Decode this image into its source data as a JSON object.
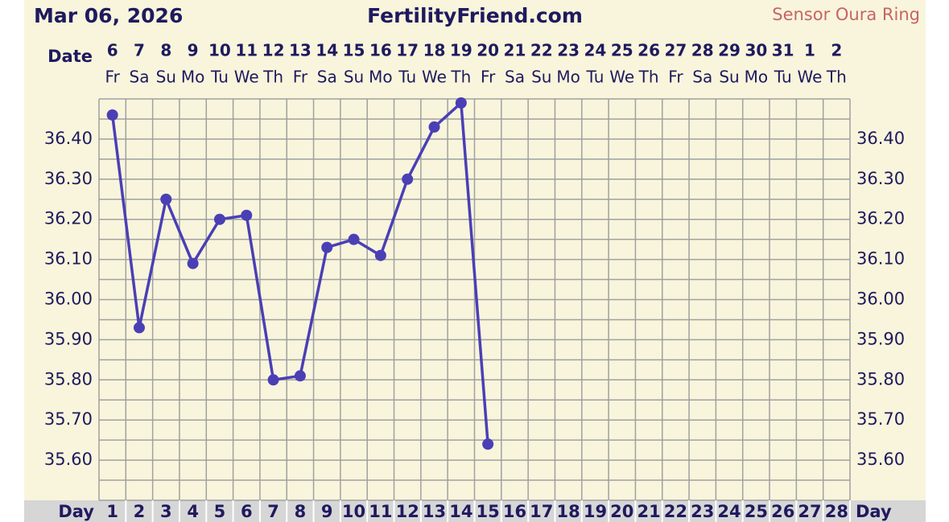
{
  "chart_data": {
    "type": "line",
    "title": "Mar 06, 2026",
    "subtitle": "FertilityFriend.com",
    "annotation": "Sensor Oura Ring",
    "date_label": "Date",
    "day_label": "Day",
    "dates": [
      "6",
      "7",
      "8",
      "9",
      "10",
      "11",
      "12",
      "13",
      "14",
      "15",
      "16",
      "17",
      "18",
      "19",
      "20",
      "21",
      "22",
      "23",
      "24",
      "25",
      "26",
      "27",
      "28",
      "29",
      "30",
      "31",
      "1",
      "2"
    ],
    "weekdays": [
      "Fr",
      "Sa",
      "Su",
      "Mo",
      "Tu",
      "We",
      "Th",
      "Fr",
      "Sa",
      "Su",
      "Mo",
      "Tu",
      "We",
      "Th",
      "Fr",
      "Sa",
      "Su",
      "Mo",
      "Tu",
      "We",
      "Th",
      "Fr",
      "Sa",
      "Su",
      "Mo",
      "Tu",
      "We",
      "Th"
    ],
    "x": [
      1,
      2,
      3,
      4,
      5,
      6,
      7,
      8,
      9,
      10,
      11,
      12,
      13,
      14,
      15,
      16,
      17,
      18,
      19,
      20,
      21,
      22,
      23,
      24,
      25,
      26,
      27,
      28
    ],
    "values": [
      36.46,
      35.93,
      36.25,
      36.09,
      36.2,
      36.21,
      35.8,
      35.81,
      36.13,
      36.15,
      36.11,
      36.3,
      36.43,
      36.49,
      35.64,
      null,
      null,
      null,
      null,
      null,
      null,
      null,
      null,
      null,
      null,
      null,
      null,
      null
    ],
    "color": "#4a3fb5",
    "xlim": [
      0.5,
      28.5
    ],
    "ylim": [
      35.5,
      36.5
    ],
    "yticks": [
      {
        "value": 35.6,
        "label": "35.60"
      },
      {
        "value": 35.7,
        "label": "35.70"
      },
      {
        "value": 35.8,
        "label": "35.80"
      },
      {
        "value": 35.9,
        "label": "35.90"
      },
      {
        "value": 36.0,
        "label": "36.00"
      },
      {
        "value": 36.1,
        "label": "36.10"
      },
      {
        "value": 36.2,
        "label": "36.20"
      },
      {
        "value": 36.3,
        "label": "36.30"
      },
      {
        "value": 36.4,
        "label": "36.40"
      }
    ],
    "grid": true
  }
}
